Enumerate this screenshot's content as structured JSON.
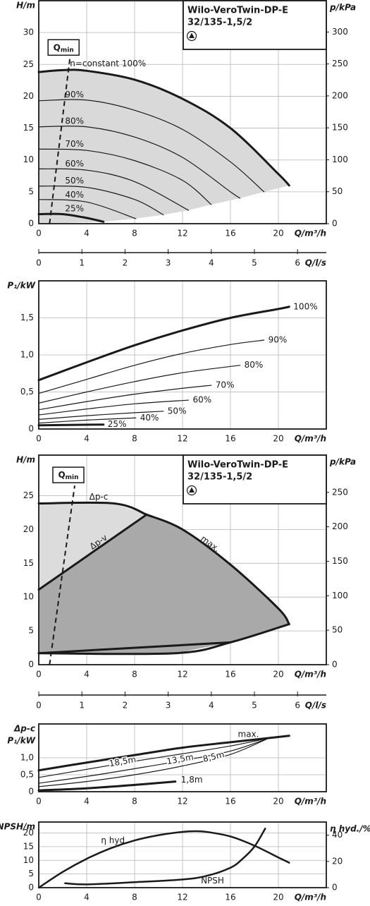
{
  "chart_data": [
    {
      "type": "line",
      "ylabel": "H/m",
      "y2label": "p/kPa",
      "xlabel": "Q/m³/h",
      "x2label": "Q/l/s",
      "info_box": [
        "Wilo-VeroTwin-DP-E",
        "32/135-1,5/2"
      ],
      "xlim": [
        0,
        24
      ],
      "xticks": [
        0,
        4,
        8,
        12,
        16,
        20
      ],
      "ylim": [
        0,
        35
      ],
      "yticks": [
        0,
        5,
        10,
        15,
        20,
        25,
        30
      ],
      "y2lim": [
        0,
        349
      ],
      "y2ticks": [
        0,
        50,
        100,
        150,
        200,
        250,
        300
      ],
      "x2lim": [
        0,
        6.667
      ],
      "x2ticks": [
        0,
        1,
        2,
        3,
        4,
        5,
        6
      ],
      "grid": true,
      "area_color": "#d9d9d9",
      "qmin": {
        "label": "Q",
        "sub": "min",
        "x": [
          0.9,
          2.6
        ],
        "values": [
          0,
          26
        ]
      },
      "series": [
        {
          "name": "n=constant 100%",
          "color": "#1a1a1a",
          "line_width": 3,
          "x": [
            0,
            2,
            4,
            8,
            12,
            16,
            20,
            20.9
          ],
          "values": [
            23.8,
            24.1,
            24.0,
            22.6,
            19.6,
            15.0,
            7.8,
            6.0
          ]
        },
        {
          "name": "90%",
          "color": "#1a1a1a",
          "line_width": 1.2,
          "x": [
            0,
            4,
            8,
            12,
            16,
            18.8
          ],
          "values": [
            19.3,
            19.4,
            17.8,
            14.8,
            9.7,
            5.0
          ]
        },
        {
          "name": "80%",
          "color": "#1a1a1a",
          "line_width": 1.2,
          "x": [
            0,
            4,
            8,
            12,
            16,
            16.8
          ],
          "values": [
            15.2,
            15.2,
            13.6,
            10.4,
            5.0,
            4.0
          ]
        },
        {
          "name": "70%",
          "color": "#1a1a1a",
          "line_width": 1.2,
          "x": [
            0,
            4,
            8,
            12,
            14.4
          ],
          "values": [
            11.7,
            11.5,
            9.9,
            6.8,
            3.0
          ]
        },
        {
          "name": "60%",
          "color": "#1a1a1a",
          "line_width": 1.2,
          "x": [
            0,
            4,
            8,
            12.5
          ],
          "values": [
            8.6,
            8.4,
            6.6,
            2.1
          ]
        },
        {
          "name": "50%",
          "color": "#1a1a1a",
          "line_width": 1.2,
          "x": [
            0,
            4,
            8,
            10.4
          ],
          "values": [
            5.9,
            5.7,
            3.8,
            1.4
          ]
        },
        {
          "name": "40%",
          "color": "#1a1a1a",
          "line_width": 1.2,
          "x": [
            0,
            4,
            8.1
          ],
          "values": [
            3.8,
            3.4,
            0.8
          ]
        },
        {
          "name": "25%",
          "color": "#1a1a1a",
          "line_width": 3,
          "x": [
            0,
            2,
            4,
            5.4
          ],
          "values": [
            1.5,
            1.5,
            0.9,
            0.3
          ]
        }
      ]
    },
    {
      "type": "line",
      "ylabel": "P₁/kW",
      "xlabel": "Q/m³/h",
      "xlim": [
        0,
        24
      ],
      "xticks": [
        0,
        4,
        8,
        12,
        16,
        20
      ],
      "ylim": [
        0,
        2
      ],
      "yticks": [
        0,
        {
          "value": 0.5,
          "label": "0,5"
        },
        {
          "value": 1,
          "label": "1,0"
        },
        {
          "value": 1.5,
          "label": "1,5"
        }
      ],
      "grid": true,
      "series": [
        {
          "name": "100%",
          "color": "#1a1a1a",
          "line_width": 3,
          "x": [
            0,
            4,
            8,
            12,
            16,
            20,
            20.9
          ],
          "values": [
            0.66,
            0.9,
            1.13,
            1.33,
            1.5,
            1.62,
            1.65
          ]
        },
        {
          "name": "90%",
          "color": "#1a1a1a",
          "line_width": 1.2,
          "x": [
            0,
            4,
            8,
            12,
            16,
            18.8
          ],
          "values": [
            0.48,
            0.67,
            0.86,
            1.02,
            1.14,
            1.2
          ]
        },
        {
          "name": "80%",
          "color": "#1a1a1a",
          "line_width": 1.2,
          "x": [
            0,
            4,
            8,
            12,
            16.8
          ],
          "values": [
            0.35,
            0.5,
            0.64,
            0.76,
            0.86
          ]
        },
        {
          "name": "70%",
          "color": "#1a1a1a",
          "line_width": 1.2,
          "x": [
            0,
            4,
            8,
            12,
            14.4
          ],
          "values": [
            0.26,
            0.37,
            0.47,
            0.55,
            0.59
          ]
        },
        {
          "name": "60%",
          "color": "#1a1a1a",
          "line_width": 1.2,
          "x": [
            0,
            4,
            8,
            12.5
          ],
          "values": [
            0.19,
            0.27,
            0.34,
            0.39
          ]
        },
        {
          "name": "50%",
          "color": "#1a1a1a",
          "line_width": 1.2,
          "x": [
            0,
            4,
            8,
            10.4
          ],
          "values": [
            0.13,
            0.18,
            0.22,
            0.24
          ]
        },
        {
          "name": "40%",
          "color": "#1a1a1a",
          "line_width": 1.2,
          "x": [
            0,
            4,
            8.1
          ],
          "values": [
            0.08,
            0.12,
            0.15
          ]
        },
        {
          "name": "25%",
          "color": "#1a1a1a",
          "line_width": 3,
          "x": [
            0,
            5.4
          ],
          "values": [
            0.05,
            0.06
          ]
        }
      ]
    },
    {
      "type": "line",
      "ylabel": "H/m",
      "y2label": "p/kPa",
      "xlabel": "Q/m³/h",
      "x2label": "Q/l/s",
      "info_box": [
        "Wilo-VeroTwin-DP-E",
        "32/135-1,5/2"
      ],
      "xlim": [
        0,
        24
      ],
      "xticks": [
        0,
        4,
        8,
        12,
        16,
        20
      ],
      "ylim": [
        0,
        31
      ],
      "yticks": [
        0,
        5,
        10,
        15,
        20,
        25
      ],
      "y2lim": [
        0,
        304
      ],
      "y2ticks": [
        0,
        50,
        100,
        150,
        200,
        250
      ],
      "x2lim": [
        0,
        6.667
      ],
      "x2ticks": [
        0,
        1,
        2,
        3,
        4,
        5,
        6
      ],
      "grid": true,
      "region_colors": [
        "#dcdcdc",
        "#a9a9a9"
      ],
      "qmin": {
        "label": "Q",
        "sub": "min",
        "x": [
          0.9,
          3.0
        ],
        "values": [
          0,
          26.5
        ]
      },
      "series": [
        {
          "name": "Δp-c",
          "color": "#1a1a1a",
          "line_width": 3,
          "x": [
            0,
            6.3,
            9
          ],
          "values": [
            23.85,
            23.85,
            22.2
          ]
        },
        {
          "name": "Δp-v",
          "color": "#1a1a1a",
          "line_width": 3,
          "x": [
            0,
            9
          ],
          "values": [
            11.1,
            22.2
          ]
        },
        {
          "name": "max.",
          "color": "#1a1a1a",
          "line_width": 3,
          "x": [
            9,
            12,
            16,
            20,
            20.9
          ],
          "values": [
            22.2,
            20.0,
            14.8,
            8.3,
            6.0
          ]
        },
        {
          "color": "#1a1a1a",
          "line_width": 3,
          "x": [
            0,
            11.4,
            16,
            20.9
          ],
          "values": [
            1.7,
            1.7,
            3.3,
            6.0
          ]
        },
        {
          "color": "#1a1a1a",
          "line_width": 3,
          "x": [
            0,
            16
          ],
          "values": [
            1.7,
            3.3
          ]
        }
      ]
    },
    {
      "type": "line",
      "ylabel": [
        "Δp-c",
        "P₁/kW"
      ],
      "xlabel": "Q/m³/h",
      "xlim": [
        0,
        24
      ],
      "xticks": [
        0,
        4,
        8,
        12,
        16,
        20
      ],
      "ylim": [
        0,
        2
      ],
      "yticks": [
        0,
        {
          "value": 0.5,
          "label": "0,5"
        },
        {
          "value": 1,
          "label": "1,0"
        }
      ],
      "grid": true,
      "series": [
        {
          "name": "max.",
          "color": "#1a1a1a",
          "line_width": 3,
          "x": [
            0,
            4,
            8,
            12,
            16,
            20.9
          ],
          "values": [
            0.63,
            0.86,
            1.08,
            1.3,
            1.46,
            1.65
          ]
        },
        {
          "name": "18,5m",
          "color": "#1a1a1a",
          "line_width": 1.2,
          "x": [
            0,
            4,
            8,
            12,
            16,
            19.2
          ],
          "values": [
            0.42,
            0.66,
            0.9,
            1.12,
            1.35,
            1.58
          ]
        },
        {
          "name": "13,5m",
          "color": "#1a1a1a",
          "line_width": 1.2,
          "x": [
            0,
            4,
            8,
            12,
            16,
            19.2
          ],
          "values": [
            0.25,
            0.45,
            0.68,
            0.92,
            1.2,
            1.58
          ]
        },
        {
          "name": "8,5m",
          "color": "#1a1a1a",
          "line_width": 1.2,
          "x": [
            0,
            4,
            8,
            12,
            16,
            19.2
          ],
          "values": [
            0.15,
            0.3,
            0.5,
            0.76,
            1.1,
            1.58
          ]
        },
        {
          "name": "1,8m",
          "color": "#1a1a1a",
          "line_width": 3,
          "x": [
            0,
            4,
            8,
            11.4
          ],
          "values": [
            0.04,
            0.1,
            0.2,
            0.3
          ]
        }
      ]
    },
    {
      "type": "line",
      "ylabel": "NPSH/m",
      "y2label": "η hyd./%",
      "xlabel": "Q/m³/h",
      "xlim": [
        0,
        24
      ],
      "xticks": [
        0,
        4,
        8,
        12,
        16,
        20
      ],
      "ylim": [
        0,
        24
      ],
      "yticks": [
        0,
        5,
        10,
        15,
        20
      ],
      "y2lim": [
        0,
        50
      ],
      "y2ticks": [
        0,
        20,
        40
      ],
      "grid": true,
      "series": [
        {
          "name": "η hyd.",
          "axis": "y2",
          "color": "#1a1a1a",
          "line_width": 2.5,
          "x": [
            0,
            2,
            4,
            6,
            8,
            10,
            12,
            13,
            14,
            16,
            18,
            20,
            20.9
          ],
          "values": [
            0,
            12,
            22,
            30,
            36,
            40,
            42.5,
            43,
            42.5,
            39,
            32,
            23,
            19
          ]
        },
        {
          "name": "NPSH",
          "color": "#1a1a1a",
          "line_width": 2.5,
          "x": [
            2.2,
            4,
            8,
            12,
            14,
            16,
            17,
            18,
            18.9
          ],
          "values": [
            1.6,
            1.2,
            2.0,
            3.0,
            4.3,
            7.3,
            10.5,
            15,
            21.6
          ]
        }
      ]
    }
  ]
}
